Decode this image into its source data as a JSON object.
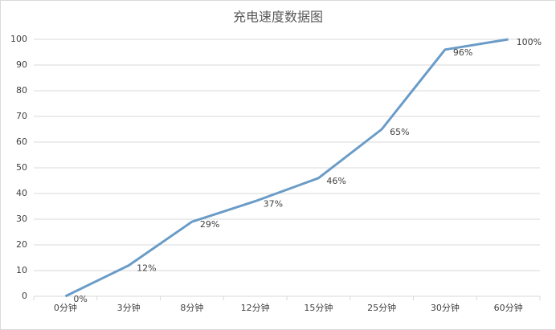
{
  "chart_data": {
    "type": "line",
    "title": "充电速度数据图",
    "categories": [
      "0分钟",
      "3分钟",
      "8分钟",
      "12分钟",
      "15分钟",
      "25分钟",
      "30分钟",
      "60分钟"
    ],
    "values": [
      0,
      12,
      29,
      37,
      46,
      65,
      96,
      100
    ],
    "value_labels": [
      "0%",
      "12%",
      "29%",
      "37%",
      "46%",
      "65%",
      "96%",
      "100%"
    ],
    "color": "#6a9cc7",
    "ylim": [
      0,
      100
    ],
    "yticks": [
      0,
      10,
      20,
      30,
      40,
      50,
      60,
      70,
      80,
      90,
      100
    ],
    "grid": true
  }
}
